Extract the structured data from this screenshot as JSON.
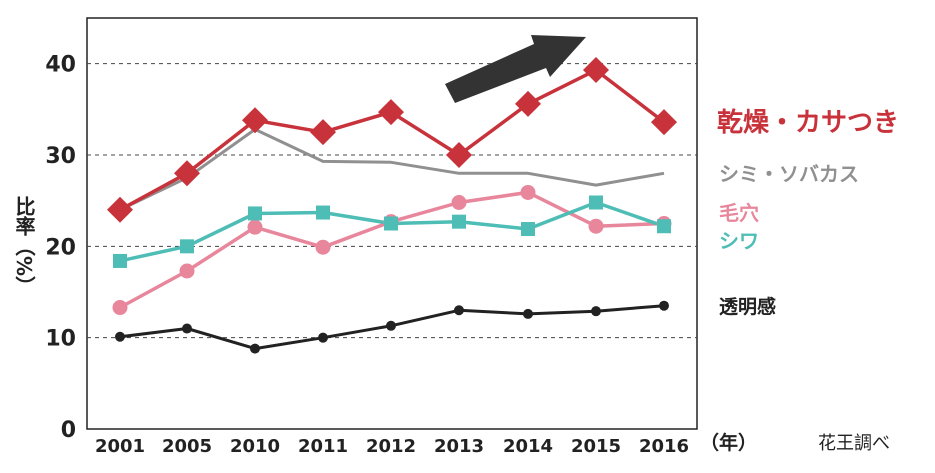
{
  "chart_data": {
    "type": "line",
    "categories": [
      "2001",
      "2005",
      "2010",
      "2011",
      "2012",
      "2013",
      "2014",
      "2015",
      "2016"
    ],
    "series": [
      {
        "name": "乾燥・カサつき",
        "values": [
          24,
          28,
          33.8,
          32.5,
          34.7,
          30,
          35.6,
          39.3,
          33.6
        ],
        "color": "#c8323a",
        "marker": "diamond"
      },
      {
        "name": "シミ・ソバカス",
        "values": [
          24,
          27.5,
          32.8,
          29.3,
          29.2,
          28,
          28,
          26.7,
          28
        ],
        "color": "#909090",
        "marker": "none"
      },
      {
        "name": "毛穴",
        "values": [
          13.3,
          17.3,
          22.1,
          19.9,
          22.7,
          24.8,
          25.9,
          22.2,
          22.5
        ],
        "color": "#e8869c",
        "marker": "circle"
      },
      {
        "name": "シワ",
        "values": [
          18.4,
          20,
          23.6,
          23.7,
          22.5,
          22.7,
          21.9,
          24.8,
          22.2
        ],
        "color": "#4dbdb6",
        "marker": "square"
      },
      {
        "name": "透明感",
        "values": [
          10.1,
          11,
          8.8,
          10,
          11.3,
          13,
          12.6,
          12.9,
          13.5
        ],
        "color": "#222222",
        "marker": "dot"
      }
    ],
    "ylim": [
      0,
      45
    ],
    "yticks": [
      "0",
      "10",
      "20",
      "30",
      "40"
    ],
    "ylabel": "比率（%）",
    "xunit": "（年）",
    "source": "花王調べ",
    "grid": "horizontal dashed",
    "legend": "right",
    "arrow": "upward trend arrow",
    "arrow_color": "#333333"
  }
}
